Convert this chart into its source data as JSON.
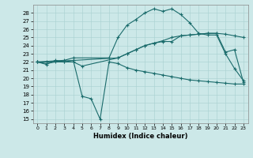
{
  "xlabel": "Humidex (Indice chaleur)",
  "xlim": [
    -0.5,
    23.5
  ],
  "ylim": [
    14.5,
    29.0
  ],
  "xticks": [
    0,
    1,
    2,
    3,
    4,
    5,
    6,
    7,
    8,
    9,
    10,
    11,
    12,
    13,
    14,
    15,
    16,
    17,
    18,
    19,
    20,
    21,
    22,
    23
  ],
  "yticks": [
    15,
    16,
    17,
    18,
    19,
    20,
    21,
    22,
    23,
    24,
    25,
    26,
    27,
    28
  ],
  "background_color": "#cce8e8",
  "line_color": "#1a6b6b",
  "line1_x": [
    0,
    1,
    2,
    3,
    4,
    5,
    9,
    10,
    11,
    12,
    13,
    14,
    15,
    16,
    17,
    18,
    19,
    20,
    21,
    22,
    23
  ],
  "line1_y": [
    22,
    21.8,
    22.0,
    22.0,
    22.0,
    21.5,
    22.5,
    23.0,
    23.5,
    24.0,
    24.3,
    24.5,
    24.5,
    25.2,
    25.3,
    25.4,
    25.5,
    25.5,
    23.2,
    23.5,
    19.5
  ],
  "line2_x": [
    0,
    1,
    2,
    3,
    4,
    5,
    6,
    7,
    8,
    9,
    10,
    11,
    12,
    13,
    14,
    15,
    16,
    17,
    18,
    19,
    20,
    21,
    22,
    23
  ],
  "line2_y": [
    22,
    21.7,
    22.2,
    22.0,
    22.2,
    17.8,
    17.5,
    15.0,
    22.0,
    21.8,
    21.3,
    21.0,
    20.8,
    20.6,
    20.4,
    20.2,
    20.0,
    19.8,
    19.7,
    19.6,
    19.5,
    19.4,
    19.3,
    19.3
  ],
  "line3_x": [
    0,
    3,
    4,
    8,
    9,
    10,
    11,
    12,
    13,
    14,
    15,
    16,
    17,
    18,
    19,
    20,
    21,
    22,
    23
  ],
  "line3_y": [
    22,
    22.2,
    22.5,
    22.5,
    25.0,
    26.5,
    27.2,
    28.0,
    28.5,
    28.2,
    28.5,
    27.8,
    26.8,
    25.5,
    25.3,
    25.3,
    23.0,
    21.2,
    19.7
  ],
  "line4_x": [
    0,
    1,
    9,
    10,
    11,
    12,
    13,
    14,
    15,
    16,
    17,
    18,
    19,
    20,
    21,
    22,
    23
  ],
  "line4_y": [
    22,
    22,
    22.5,
    23.0,
    23.5,
    24.0,
    24.3,
    24.6,
    25.0,
    25.2,
    25.3,
    25.4,
    25.5,
    25.5,
    25.4,
    25.2,
    25.0
  ]
}
